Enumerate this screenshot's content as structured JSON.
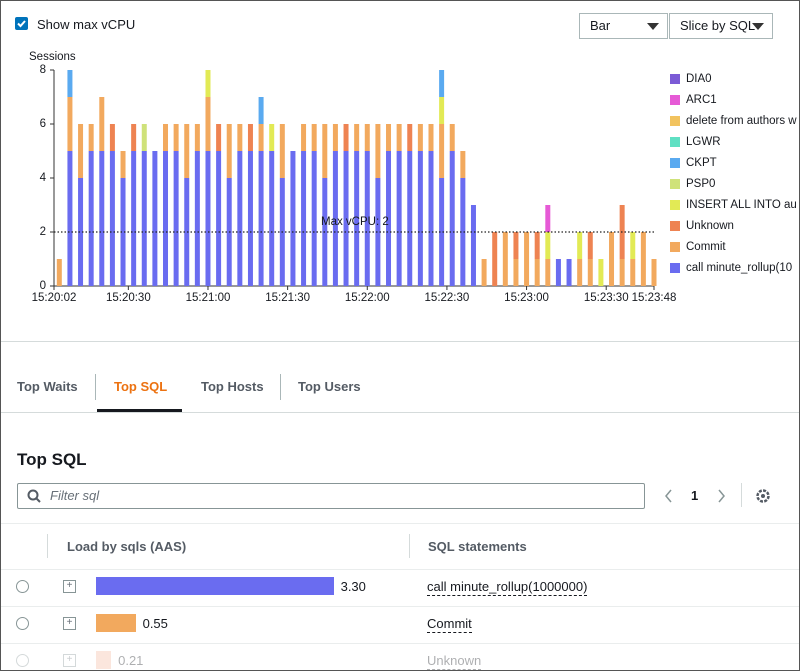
{
  "chart_data": {
    "type": "bar",
    "stacked": true,
    "y_label": "Sessions",
    "x": [
      "15:20:04",
      "15:20:08",
      "15:20:12",
      "15:20:16",
      "15:20:20",
      "15:20:24",
      "15:20:28",
      "15:20:32",
      "15:20:36",
      "15:20:40",
      "15:20:44",
      "15:20:48",
      "15:20:52",
      "15:20:56",
      "15:21:00",
      "15:21:04",
      "15:21:08",
      "15:21:12",
      "15:21:16",
      "15:21:20",
      "15:21:24",
      "15:21:28",
      "15:21:32",
      "15:21:36",
      "15:21:40",
      "15:21:44",
      "15:21:48",
      "15:21:52",
      "15:21:56",
      "15:22:00",
      "15:22:04",
      "15:22:08",
      "15:22:12",
      "15:22:16",
      "15:22:20",
      "15:22:24",
      "15:22:28",
      "15:22:32",
      "15:22:36",
      "15:22:40",
      "15:22:44",
      "15:22:48",
      "15:22:52",
      "15:22:56",
      "15:23:00",
      "15:23:04",
      "15:23:08",
      "15:23:12",
      "15:23:16",
      "15:23:20",
      "15:23:24",
      "15:23:28",
      "15:23:32",
      "15:23:36",
      "15:23:40",
      "15:23:44",
      "15:23:48"
    ],
    "xlim": [
      "15:20:02",
      "15:23:48"
    ],
    "xticks": [
      "15:20:02",
      "15:20:30",
      "15:21:00",
      "15:21:30",
      "15:22:00",
      "15:22:30",
      "15:23:00",
      "15:23:30",
      "15:23:48"
    ],
    "ylim": [
      0,
      8
    ],
    "yticks": [
      0,
      2,
      4,
      6,
      8
    ],
    "max_vcpu": {
      "value": 2,
      "label": "Max vCPU: 2"
    },
    "series": [
      {
        "name": "DIA0",
        "color": "#7b5bd6",
        "values": [
          0,
          0,
          0,
          0,
          0,
          0,
          0,
          0,
          0,
          0,
          0,
          0,
          0,
          0,
          0,
          0,
          0,
          0,
          0,
          0,
          0,
          0,
          0,
          0,
          0,
          0,
          0,
          0,
          0,
          0,
          0,
          0,
          0,
          0,
          0,
          0,
          0,
          0,
          0,
          0,
          0,
          0,
          0,
          0,
          0,
          0,
          0,
          0,
          0,
          0,
          0,
          0,
          0,
          0,
          0,
          0,
          0
        ]
      },
      {
        "name": "ARC1",
        "color": "#e65ad6",
        "values": [
          0,
          0,
          0,
          0,
          0,
          0,
          0,
          0,
          0,
          0,
          0,
          0,
          0,
          0,
          0,
          0,
          0,
          0,
          0,
          0,
          0,
          0,
          0,
          0,
          0,
          0,
          0,
          0,
          0,
          0,
          0,
          0,
          0,
          0,
          0,
          0,
          0,
          0,
          0,
          0,
          0,
          0,
          0,
          0,
          0,
          0,
          1,
          0,
          0,
          0,
          0,
          0,
          0,
          0,
          0,
          0,
          0
        ]
      },
      {
        "name": "delete from authors w",
        "color": "#f2c35f",
        "values": [
          0,
          0,
          0,
          0,
          0,
          0,
          0,
          0,
          0,
          0,
          0,
          0,
          0,
          0,
          0,
          0,
          0,
          0,
          0,
          0,
          0,
          0,
          0,
          0,
          0,
          0,
          0,
          0,
          0,
          0,
          0,
          0,
          0,
          0,
          0,
          0,
          0,
          0,
          0,
          0,
          0,
          0,
          0,
          0,
          0,
          0,
          0,
          0,
          0,
          0,
          0,
          0,
          0,
          0,
          0,
          0,
          0
        ]
      },
      {
        "name": "LGWR",
        "color": "#5fe0c3",
        "values": [
          0,
          0,
          0,
          0,
          0,
          0,
          0,
          0,
          0,
          0,
          0,
          0,
          0,
          0,
          0,
          0,
          0,
          0,
          0,
          0,
          0,
          0,
          0,
          0,
          0,
          0,
          0,
          0,
          0,
          0,
          0,
          0,
          0,
          0,
          0,
          0,
          0,
          0,
          0,
          0,
          0,
          0,
          0,
          0,
          0,
          0,
          0,
          0,
          0,
          0,
          0,
          0,
          0,
          0,
          0,
          0,
          0
        ]
      },
      {
        "name": "CKPT",
        "color": "#5aaaf0",
        "values": [
          0,
          1,
          0,
          0,
          0,
          0,
          0,
          0,
          0,
          0,
          0,
          0,
          0,
          0,
          0,
          0,
          0,
          0,
          0,
          1,
          0,
          0,
          0,
          0,
          0,
          0,
          0,
          0,
          0,
          0,
          0,
          0,
          0,
          0,
          0,
          0,
          1,
          0,
          0,
          0,
          0,
          0,
          0,
          0,
          0,
          0,
          0,
          0,
          0,
          0,
          0,
          0,
          0,
          0,
          0,
          0,
          0
        ]
      },
      {
        "name": "PSP0",
        "color": "#cfe27a",
        "values": [
          0,
          0,
          0,
          0,
          0,
          0,
          0,
          0,
          1,
          0,
          0,
          0,
          0,
          0,
          0,
          0,
          0,
          0,
          0,
          0,
          0,
          0,
          0,
          0,
          0,
          0,
          0,
          0,
          0,
          0,
          0,
          0,
          0,
          0,
          0,
          0,
          0,
          0,
          0,
          0,
          0,
          0,
          0,
          0,
          0,
          0,
          0,
          0,
          0,
          0,
          0,
          0,
          0,
          0,
          0,
          0,
          0
        ]
      },
      {
        "name": "INSERT ALL   INTO au",
        "color": "#e2ea55",
        "values": [
          0,
          0,
          0,
          0,
          0,
          0,
          0,
          0,
          0,
          0,
          0,
          0,
          0,
          0,
          1,
          0,
          0,
          0,
          0,
          0,
          1,
          0,
          0,
          0,
          0,
          0,
          0,
          0,
          0,
          0,
          0,
          0,
          0,
          0,
          0,
          0,
          1,
          0,
          0,
          0,
          0,
          0,
          0,
          0,
          0,
          0,
          1,
          0,
          0,
          1,
          0,
          1,
          0,
          0,
          1,
          0,
          0
        ]
      },
      {
        "name": "Unknown",
        "color": "#ee8352",
        "values": [
          0,
          0,
          0,
          0,
          0,
          1,
          0,
          1,
          0,
          0,
          0,
          0,
          0,
          0,
          0,
          1,
          0,
          0,
          1,
          0,
          0,
          0,
          0,
          0,
          0,
          0,
          0,
          1,
          0,
          0,
          0,
          0,
          0,
          1,
          0,
          0,
          0,
          0,
          0,
          0,
          0,
          2,
          0,
          1,
          0,
          1,
          0,
          0,
          0,
          0,
          1,
          0,
          0,
          2,
          0,
          0,
          0
        ]
      },
      {
        "name": "Commit",
        "color": "#f2a95e",
        "values": [
          1,
          2,
          2,
          1,
          2,
          0,
          1,
          0,
          0,
          0,
          1,
          1,
          2,
          1,
          2,
          0,
          2,
          1,
          0,
          1,
          0,
          2,
          0,
          1,
          1,
          2,
          1,
          0,
          1,
          1,
          2,
          1,
          1,
          0,
          1,
          1,
          2,
          1,
          1,
          0,
          1,
          0,
          2,
          1,
          2,
          1,
          1,
          0,
          0,
          1,
          1,
          0,
          2,
          1,
          1,
          2,
          1
        ]
      },
      {
        "name": "call minute_rollup(10",
        "color": "#6a6cf0",
        "values": [
          0,
          5,
          4,
          5,
          5,
          5,
          4,
          5,
          5,
          5,
          5,
          5,
          4,
          5,
          5,
          5,
          4,
          5,
          5,
          5,
          5,
          4,
          5,
          5,
          5,
          4,
          5,
          5,
          5,
          5,
          4,
          5,
          5,
          5,
          5,
          5,
          4,
          5,
          4,
          3,
          0,
          0,
          0,
          0,
          0,
          0,
          0,
          1,
          1,
          0,
          0,
          0,
          0,
          0,
          0,
          0,
          0
        ]
      }
    ]
  },
  "controls": {
    "show_max_vcpu": "Show max vCPU",
    "chart_style": "Bar",
    "slice_by": "Slice by SQL"
  },
  "tabs": [
    "Top Waits",
    "Top SQL",
    "Top Hosts",
    "Top Users"
  ],
  "top_sql": {
    "title": "Top SQL",
    "filter_placeholder": "Filter sql",
    "page": 1,
    "columns": [
      "Load by sqls (AAS)",
      "SQL statements"
    ],
    "rows": [
      {
        "load": 3.3,
        "load_label": "3.30",
        "color": "#6a6cf0",
        "sql": "call minute_rollup(1000000)"
      },
      {
        "load": 0.55,
        "load_label": "0.55",
        "color": "#f2a95e",
        "sql": "Commit"
      },
      {
        "load": 0.21,
        "load_label": "0.21",
        "color": "#f5b9a0",
        "sql": "Unknown"
      }
    ]
  }
}
